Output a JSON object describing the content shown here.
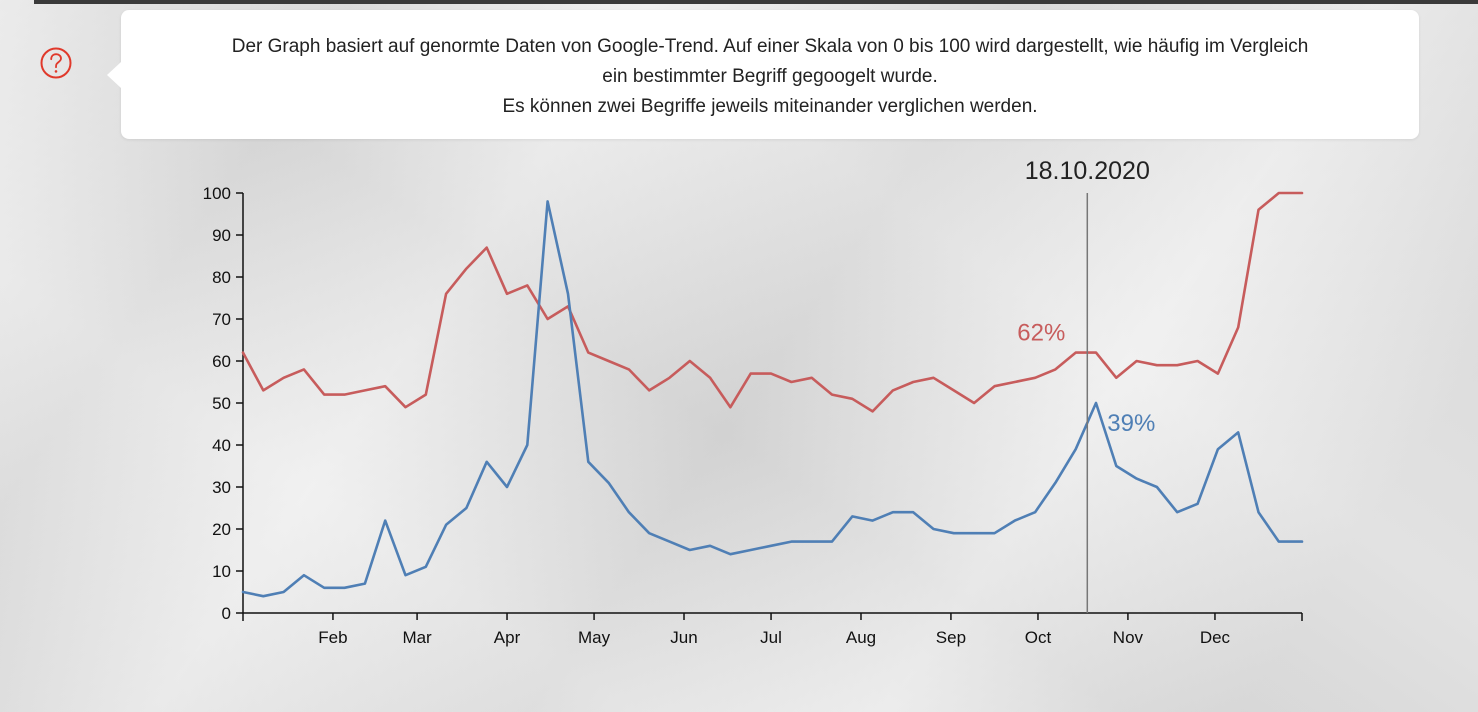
{
  "info": {
    "line1": "Der Graph basiert auf genormte Daten von Google-Trend. Auf einer Skala von 0 bis 100 wird dargestellt, wie häufig im Vergleich",
    "line2": "ein bestimmter Begriff gegoogelt wurde.",
    "line3": "Es können zwei Begriffe jeweils miteinander verglichen werden.",
    "help_icon": "question-circle-icon",
    "help_icon_color": "#e0392b"
  },
  "chart_data": {
    "type": "line",
    "title": "",
    "xlabel": "",
    "ylabel": "",
    "x_range": [
      "2020-01-01",
      "2020-12-31"
    ],
    "ylim": [
      0,
      100
    ],
    "y_ticks": [
      0,
      10,
      20,
      30,
      40,
      50,
      60,
      70,
      80,
      90,
      100
    ],
    "x_ticks": [
      {
        "date": "2020-02-01",
        "label": "Feb"
      },
      {
        "date": "2020-03-01",
        "label": "Mar"
      },
      {
        "date": "2020-04-01",
        "label": "Apr"
      },
      {
        "date": "2020-05-01",
        "label": "May"
      },
      {
        "date": "2020-06-01",
        "label": "Jun"
      },
      {
        "date": "2020-07-01",
        "label": "Jul"
      },
      {
        "date": "2020-08-01",
        "label": "Aug"
      },
      {
        "date": "2020-09-01",
        "label": "Sep"
      },
      {
        "date": "2020-10-01",
        "label": "Oct"
      },
      {
        "date": "2020-11-01",
        "label": "Nov"
      },
      {
        "date": "2020-12-01",
        "label": "Dec"
      }
    ],
    "grid": false,
    "legend": "none",
    "x": [
      "2020-01-01",
      "2020-01-08",
      "2020-01-15",
      "2020-01-22",
      "2020-01-29",
      "2020-02-05",
      "2020-02-12",
      "2020-02-19",
      "2020-02-26",
      "2020-03-04",
      "2020-03-11",
      "2020-03-18",
      "2020-03-25",
      "2020-04-01",
      "2020-04-08",
      "2020-04-15",
      "2020-04-22",
      "2020-04-29",
      "2020-05-06",
      "2020-05-13",
      "2020-05-20",
      "2020-05-27",
      "2020-06-03",
      "2020-06-10",
      "2020-06-17",
      "2020-06-24",
      "2020-07-01",
      "2020-07-08",
      "2020-07-15",
      "2020-07-22",
      "2020-07-29",
      "2020-08-05",
      "2020-08-12",
      "2020-08-19",
      "2020-08-26",
      "2020-09-02",
      "2020-09-09",
      "2020-09-16",
      "2020-09-23",
      "2020-09-30",
      "2020-10-07",
      "2020-10-14",
      "2020-10-21",
      "2020-10-28",
      "2020-11-04",
      "2020-11-11",
      "2020-11-18",
      "2020-11-25",
      "2020-12-02",
      "2020-12-09",
      "2020-12-16",
      "2020-12-23",
      "2020-12-31"
    ],
    "series": [
      {
        "color": "#c75c5c",
        "values": [
          62,
          53,
          56,
          58,
          52,
          52,
          53,
          54,
          49,
          52,
          76,
          82,
          87,
          76,
          78,
          70,
          73,
          62,
          60,
          58,
          53,
          56,
          60,
          56,
          49,
          57,
          57,
          55,
          56,
          52,
          51,
          48,
          53,
          55,
          56,
          53,
          50,
          54,
          55,
          56,
          58,
          62,
          62,
          56,
          60,
          59,
          59,
          60,
          57,
          68,
          96,
          100,
          100
        ]
      },
      {
        "color": "#4f7fb5",
        "values": [
          5,
          4,
          5,
          9,
          6,
          6,
          7,
          22,
          9,
          11,
          21,
          25,
          36,
          30,
          40,
          98,
          76,
          36,
          31,
          24,
          19,
          17,
          15,
          16,
          14,
          15,
          16,
          17,
          17,
          17,
          23,
          22,
          24,
          24,
          20,
          19,
          19,
          19,
          22,
          24,
          31,
          39,
          50,
          35,
          32,
          30,
          24,
          26,
          39,
          43,
          24,
          17,
          17
        ]
      }
    ],
    "marker": {
      "date": "2020-10-18",
      "label": "18.10.2020",
      "values": [
        {
          "text": "62%",
          "color": "#c75c5c"
        },
        {
          "text": "39%",
          "color": "#4f7fb5"
        }
      ]
    }
  }
}
